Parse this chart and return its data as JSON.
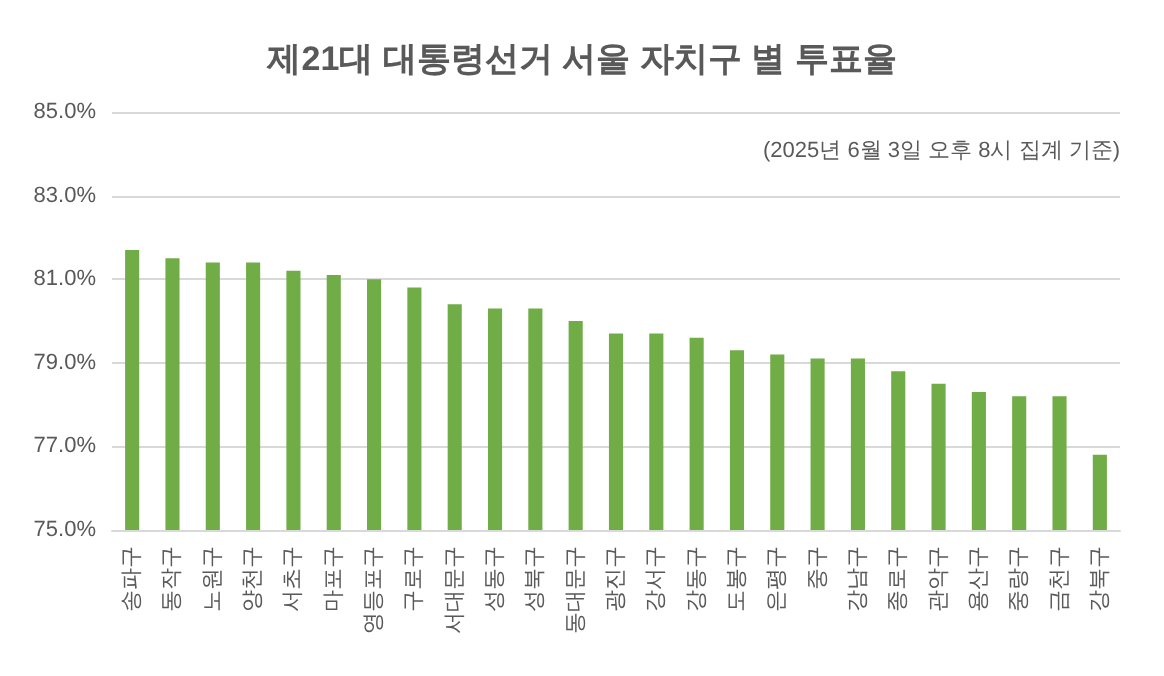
{
  "chart_data": {
    "type": "bar",
    "title": "제21대 대통령선거 서울 자치구 별 투표율",
    "annotations": [
      "(2025년 6월 3일 오후 8시 집계 기준)"
    ],
    "categories": [
      "송파구",
      "동작구",
      "노원구",
      "양천구",
      "서초구",
      "마포구",
      "영등포구",
      "구로구",
      "서대문구",
      "성동구",
      "성북구",
      "동대문구",
      "광진구",
      "강서구",
      "강동구",
      "도봉구",
      "은평구",
      "중구",
      "강남구",
      "종로구",
      "관악구",
      "용산구",
      "중랑구",
      "금천구",
      "강북구"
    ],
    "values": [
      81.7,
      81.5,
      81.4,
      81.4,
      81.2,
      81.1,
      81.0,
      80.8,
      80.4,
      80.3,
      80.3,
      80.0,
      79.7,
      79.7,
      79.6,
      79.3,
      79.2,
      79.1,
      79.1,
      78.8,
      78.5,
      78.3,
      78.2,
      78.2,
      76.8
    ],
    "color": "#70ad47",
    "ylim": [
      75,
      85
    ],
    "yticks": [
      {
        "value": 75,
        "label": "75.0%"
      },
      {
        "value": 77,
        "label": "77.0%"
      },
      {
        "value": 79,
        "label": "79.0%"
      },
      {
        "value": 81,
        "label": "81.0%"
      },
      {
        "value": 83,
        "label": "83.0%"
      },
      {
        "value": 85,
        "label": "85.0%"
      }
    ],
    "grid": "y"
  }
}
